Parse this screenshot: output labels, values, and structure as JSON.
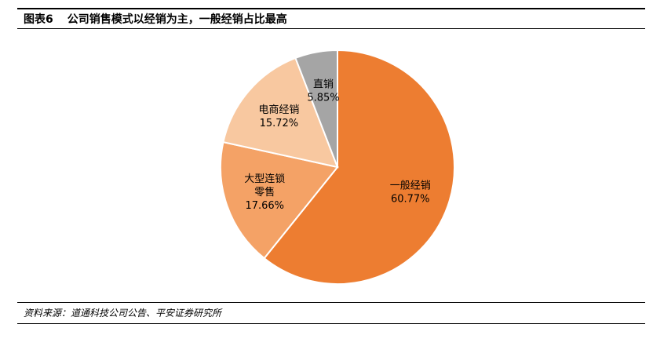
{
  "header": {
    "figure_number": "图表6",
    "title": "公司销售模式以经销为主，一般经销占比最高"
  },
  "source": "资料来源：道通科技公司公告、平安证券研究所",
  "chart_data": {
    "type": "pie",
    "slices": [
      {
        "label": [
          "一般经销"
        ],
        "value": 60.77,
        "value_text": "60.77%",
        "color": "#ED7D31"
      },
      {
        "label": [
          "大型连锁",
          "零售"
        ],
        "value": 17.66,
        "value_text": "17.66%",
        "color": "#F4A266"
      },
      {
        "label": [
          "电商经销"
        ],
        "value": 15.72,
        "value_text": "15.72%",
        "color": "#F8C8A0"
      },
      {
        "label": [
          "直销"
        ],
        "value": 5.85,
        "value_text": "5.85%",
        "color": "#A5A5A5"
      }
    ]
  }
}
